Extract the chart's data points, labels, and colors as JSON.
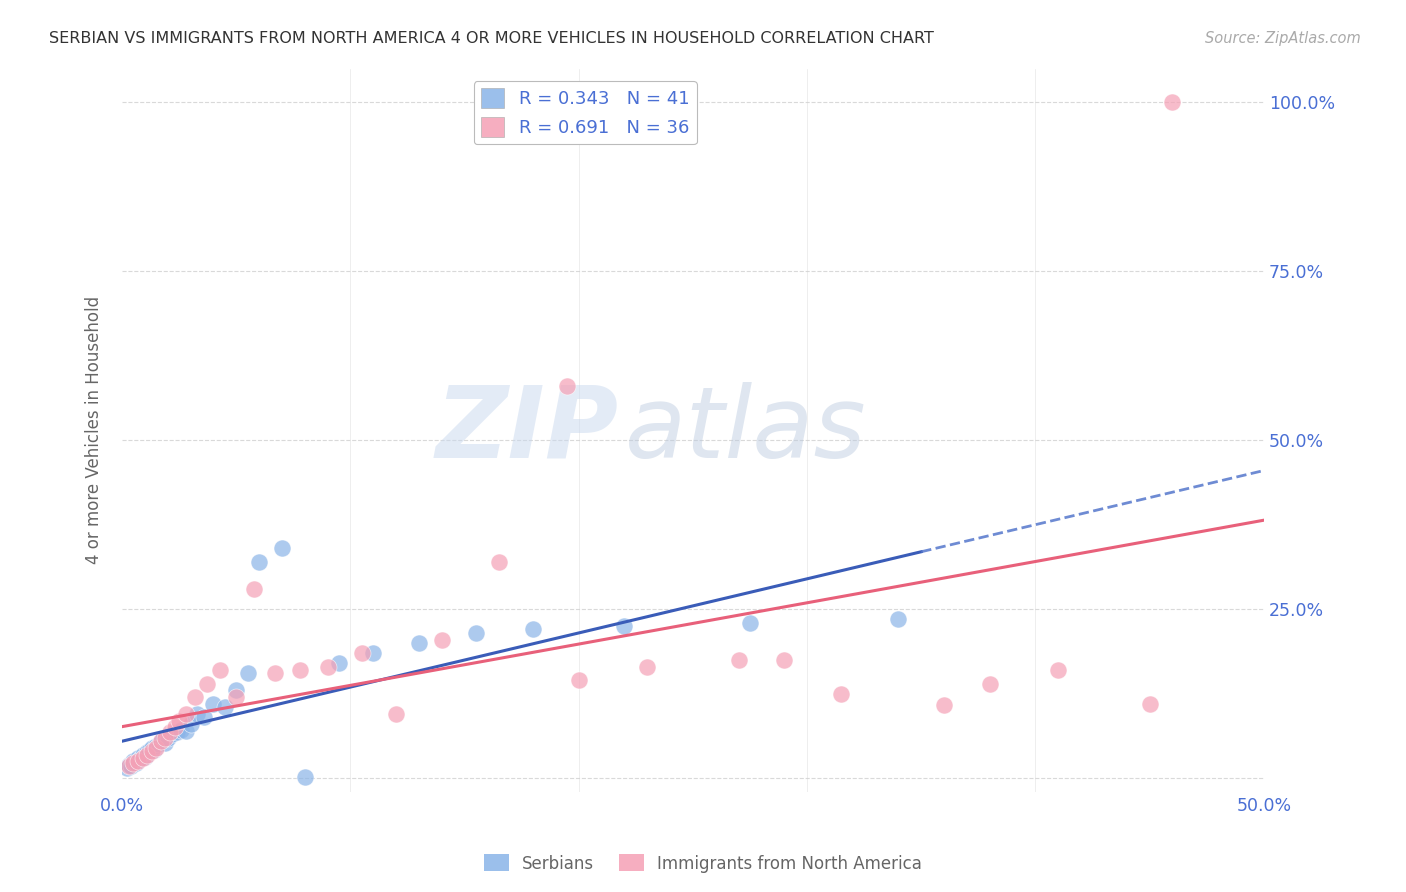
{
  "title": "SERBIAN VS IMMIGRANTS FROM NORTH AMERICA 4 OR MORE VEHICLES IN HOUSEHOLD CORRELATION CHART",
  "source_text": "Source: ZipAtlas.com",
  "ylabel": "4 or more Vehicles in Household",
  "watermark_zip": "ZIP",
  "watermark_atlas": "atlas",
  "xlim": [
    0.0,
    0.5
  ],
  "ylim": [
    -0.02,
    1.05
  ],
  "yticks": [
    0.0,
    0.25,
    0.5,
    0.75,
    1.0
  ],
  "ytick_labels": [
    "",
    "25.0%",
    "50.0%",
    "75.0%",
    "100.0%"
  ],
  "xtick_positions": [
    0.0,
    0.1,
    0.2,
    0.3,
    0.4,
    0.5
  ],
  "xtick_labels_show": [
    "0.0%",
    "",
    "",
    "",
    "",
    "50.0%"
  ],
  "series1_color": "#8ab4e8",
  "series2_color": "#f5a0b5",
  "line1_color": "#3a5cb8",
  "line2_color": "#e8607a",
  "dashed_line_color": "#5577cc",
  "title_color": "#333333",
  "axis_label_color": "#666666",
  "tick_label_color": "#4a6fd4",
  "grid_color": "#d0d0d0",
  "background_color": "#ffffff",
  "R1": 0.343,
  "N1": 41,
  "R2": 0.691,
  "N2": 36,
  "serbian_x": [
    0.002,
    0.003,
    0.004,
    0.005,
    0.006,
    0.007,
    0.008,
    0.009,
    0.01,
    0.011,
    0.012,
    0.013,
    0.014,
    0.015,
    0.016,
    0.017,
    0.018,
    0.019,
    0.02,
    0.022,
    0.024,
    0.026,
    0.028,
    0.03,
    0.033,
    0.036,
    0.04,
    0.045,
    0.05,
    0.055,
    0.06,
    0.07,
    0.08,
    0.095,
    0.11,
    0.13,
    0.155,
    0.18,
    0.22,
    0.275,
    0.34
  ],
  "serbian_y": [
    0.015,
    0.02,
    0.018,
    0.025,
    0.022,
    0.03,
    0.028,
    0.035,
    0.032,
    0.038,
    0.04,
    0.045,
    0.042,
    0.048,
    0.05,
    0.055,
    0.058,
    0.052,
    0.06,
    0.065,
    0.068,
    0.072,
    0.07,
    0.08,
    0.095,
    0.09,
    0.11,
    0.105,
    0.13,
    0.155,
    0.32,
    0.34,
    0.002,
    0.17,
    0.185,
    0.2,
    0.215,
    0.22,
    0.225,
    0.23,
    0.235
  ],
  "immigrant_x": [
    0.003,
    0.005,
    0.007,
    0.009,
    0.011,
    0.013,
    0.015,
    0.017,
    0.019,
    0.021,
    0.023,
    0.025,
    0.028,
    0.032,
    0.037,
    0.043,
    0.05,
    0.058,
    0.067,
    0.078,
    0.09,
    0.105,
    0.12,
    0.14,
    0.165,
    0.195,
    0.23,
    0.27,
    0.315,
    0.36,
    0.41,
    0.46,
    0.38,
    0.29,
    0.2,
    0.45
  ],
  "immigrant_y": [
    0.018,
    0.022,
    0.025,
    0.03,
    0.035,
    0.04,
    0.045,
    0.055,
    0.06,
    0.068,
    0.075,
    0.085,
    0.095,
    0.12,
    0.14,
    0.16,
    0.12,
    0.28,
    0.155,
    0.16,
    0.165,
    0.185,
    0.095,
    0.205,
    0.32,
    0.58,
    0.165,
    0.175,
    0.125,
    0.108,
    0.16,
    1.0,
    0.14,
    0.175,
    0.145,
    0.11
  ]
}
